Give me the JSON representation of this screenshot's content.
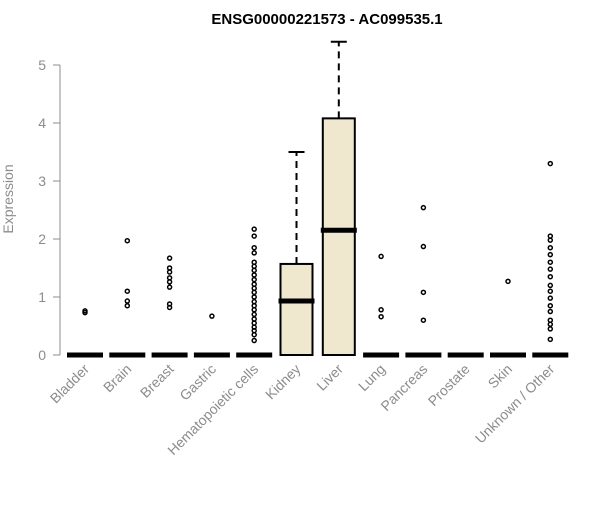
{
  "chart_data": {
    "type": "box",
    "title": "ENSG00000221573 - AC099535.1",
    "xlabel": "",
    "ylabel": "Expression",
    "ylim": [
      0,
      5.4
    ],
    "yticks": [
      "0",
      "1",
      "2",
      "3",
      "4",
      "5"
    ],
    "grid": false,
    "colors": {
      "box_fill": "#efe8cf",
      "stroke": "#000000",
      "axis": "#8c8c8c"
    },
    "categories": [
      "Bladder",
      "Brain",
      "Breast",
      "Gastric",
      "Hematopoietic cells",
      "Kidney",
      "Liver",
      "Lung",
      "Pancreas",
      "Prostate",
      "Skin",
      "Unknown / Other"
    ],
    "boxes": [
      {
        "q1": 0,
        "median": 0,
        "q3": 0,
        "whisker_low": 0,
        "whisker_high": 0,
        "outliers": [
          0.73,
          0.76
        ]
      },
      {
        "q1": 0,
        "median": 0,
        "q3": 0,
        "whisker_low": 0,
        "whisker_high": 0,
        "outliers": [
          0.85,
          0.93,
          1.1,
          1.97
        ]
      },
      {
        "q1": 0,
        "median": 0,
        "q3": 0,
        "whisker_low": 0,
        "whisker_high": 0,
        "outliers": [
          0.82,
          0.88,
          1.17,
          1.26,
          1.33,
          1.43,
          1.5,
          1.67
        ]
      },
      {
        "q1": 0,
        "median": 0,
        "q3": 0,
        "whisker_low": 0,
        "whisker_high": 0,
        "outliers": [
          0.67
        ]
      },
      {
        "q1": 0,
        "median": 0,
        "q3": 0,
        "whisker_low": 0,
        "whisker_high": 0,
        "outliers": [
          0.25,
          0.35,
          0.42,
          0.48,
          0.55,
          0.62,
          0.7,
          0.78,
          0.85,
          0.92,
          1.0,
          1.08,
          1.15,
          1.22,
          1.3,
          1.38,
          1.46,
          1.53,
          1.6,
          1.76,
          1.85,
          2.05,
          2.17
        ]
      },
      {
        "q1": 0,
        "median": 0.93,
        "q3": 1.57,
        "whisker_low": 0,
        "whisker_high": 3.5,
        "outliers": []
      },
      {
        "q1": 0,
        "median": 2.15,
        "q3": 4.08,
        "whisker_low": 0,
        "whisker_high": 5.4,
        "outliers": []
      },
      {
        "q1": 0,
        "median": 0,
        "q3": 0,
        "whisker_low": 0,
        "whisker_high": 0,
        "outliers": [
          0.66,
          0.78,
          1.7
        ]
      },
      {
        "q1": 0,
        "median": 0,
        "q3": 0,
        "whisker_low": 0,
        "whisker_high": 0,
        "outliers": [
          0.6,
          1.08,
          1.87,
          2.54
        ]
      },
      {
        "q1": 0,
        "median": 0,
        "q3": 0,
        "whisker_low": 0,
        "whisker_high": 0,
        "outliers": []
      },
      {
        "q1": 0,
        "median": 0,
        "q3": 0,
        "whisker_low": 0,
        "whisker_high": 0,
        "outliers": [
          1.27
        ]
      },
      {
        "q1": 0,
        "median": 0,
        "q3": 0,
        "whisker_low": 0,
        "whisker_high": 0,
        "outliers": [
          0.27,
          0.45,
          0.53,
          0.6,
          0.75,
          0.85,
          0.98,
          1.1,
          1.2,
          1.35,
          1.48,
          1.6,
          1.73,
          1.85,
          1.98,
          2.05,
          3.3
        ]
      }
    ]
  }
}
